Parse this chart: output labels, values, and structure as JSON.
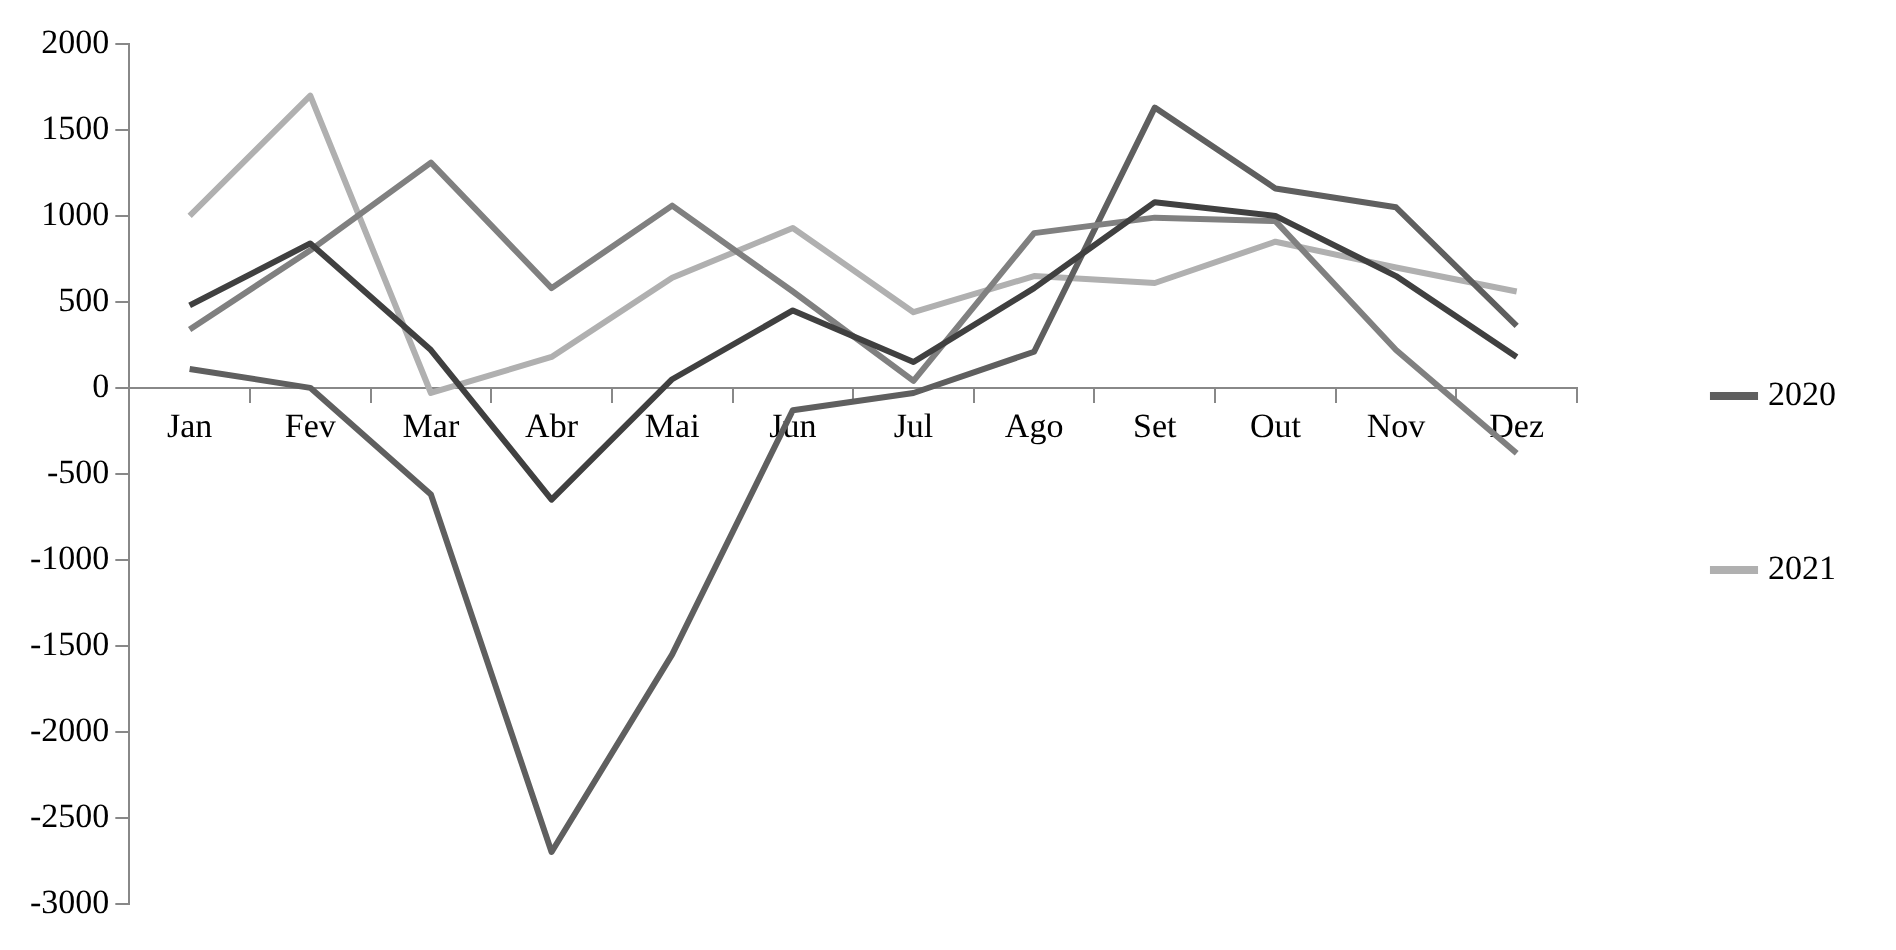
{
  "chart_data": {
    "type": "line",
    "categories": [
      "Jan",
      "Fev",
      "Mar",
      "Abr",
      "Mai",
      "Jun",
      "Jul",
      "Ago",
      "Set",
      "Out",
      "Nov",
      "Dez"
    ],
    "series": [
      {
        "color": "#404040",
        "values": [
          480,
          840,
          220,
          -650,
          50,
          450,
          150,
          580,
          1080,
          1000,
          650,
          180
        ]
      },
      {
        "color": "#808080",
        "values": [
          340,
          800,
          1310,
          580,
          1060,
          560,
          40,
          900,
          990,
          970,
          220,
          -380
        ]
      },
      {
        "name": "2020",
        "color": "#5f5f5f",
        "values": [
          110,
          0,
          -620,
          -2700,
          -1550,
          -130,
          -30,
          210,
          1630,
          1160,
          1050,
          360
        ]
      },
      {
        "name": "2021",
        "color": "#b0b0b0",
        "values": [
          1000,
          1700,
          -30,
          180,
          640,
          930,
          440,
          650,
          610,
          850,
          700,
          560
        ]
      }
    ],
    "ylim": [
      -3000,
      2000
    ],
    "yticks": [
      -3000,
      -2500,
      -2000,
      -1500,
      -1000,
      -500,
      0,
      500,
      1000,
      1500,
      2000
    ],
    "grid": false,
    "legend": "right",
    "marker": "none",
    "line_style": "solid"
  }
}
